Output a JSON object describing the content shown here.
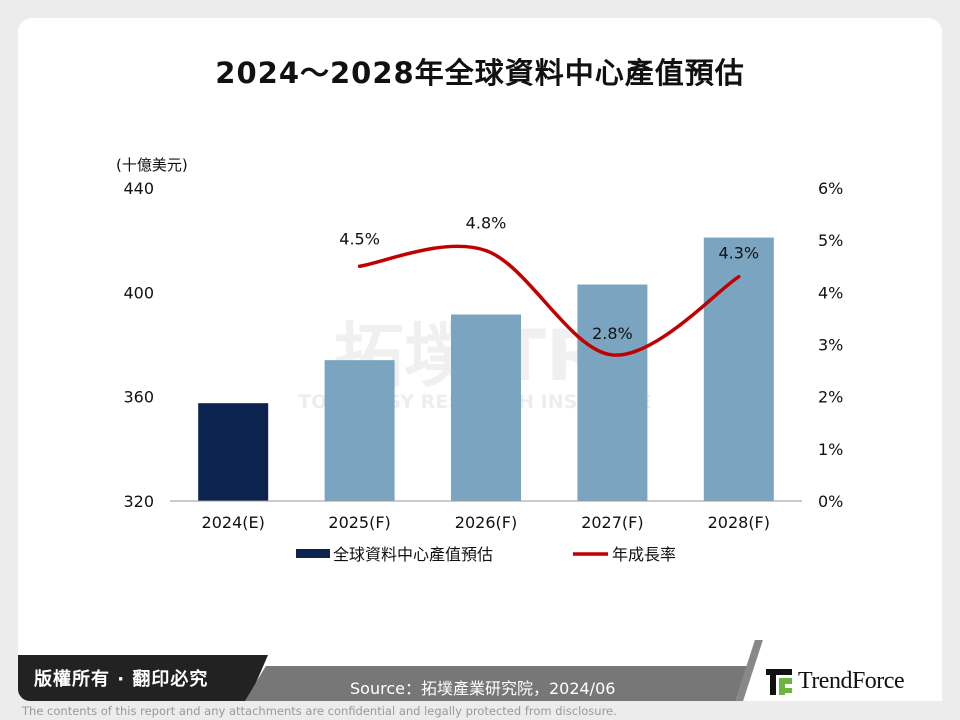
{
  "chart_data": {
    "type": "bar",
    "title": "2024～2028年全球資料中心產值預估",
    "categories": [
      "2024(E)",
      "2025(F)",
      "2026(F)",
      "2027(F)",
      "2028(F)"
    ],
    "ylabel": "(十億美元)",
    "ylim": [
      320,
      440
    ],
    "yticks": [
      "320",
      "360",
      "400",
      "440"
    ],
    "y2lim": [
      0,
      6
    ],
    "y2ticks": [
      "0%",
      "1%",
      "2%",
      "3%",
      "4%",
      "5%",
      "6%"
    ],
    "grid": false,
    "legend_position": "bottom",
    "series": [
      {
        "name": "全球資料中心產值預估",
        "type": "bar",
        "values": [
          357.5,
          374,
          391.5,
          403,
          421
        ],
        "colors": [
          "#0c2350",
          "#7ba4c0",
          "#7ba4c0",
          "#7ba4c0",
          "#7ba4c0"
        ]
      },
      {
        "name": "年成長率",
        "type": "line",
        "axis": "right",
        "values": [
          null,
          4.5,
          4.8,
          2.8,
          4.3
        ],
        "labels": [
          "",
          "4.5%",
          "4.8%",
          "2.8%",
          "4.3%"
        ],
        "color": "#c00000"
      }
    ]
  },
  "watermark": {
    "main": "拓墣 TRI",
    "sub": "TOPOLOGY RESEARCH INSTITUTE"
  },
  "footer": {
    "copyright": "版權所有 · 翻印必究",
    "source": "Source：拓墣產業研究院，2024/06",
    "brand": "TrendForce",
    "disclaimer": "The contents of this report and any attachments are confidential and legally protected from disclosure."
  }
}
